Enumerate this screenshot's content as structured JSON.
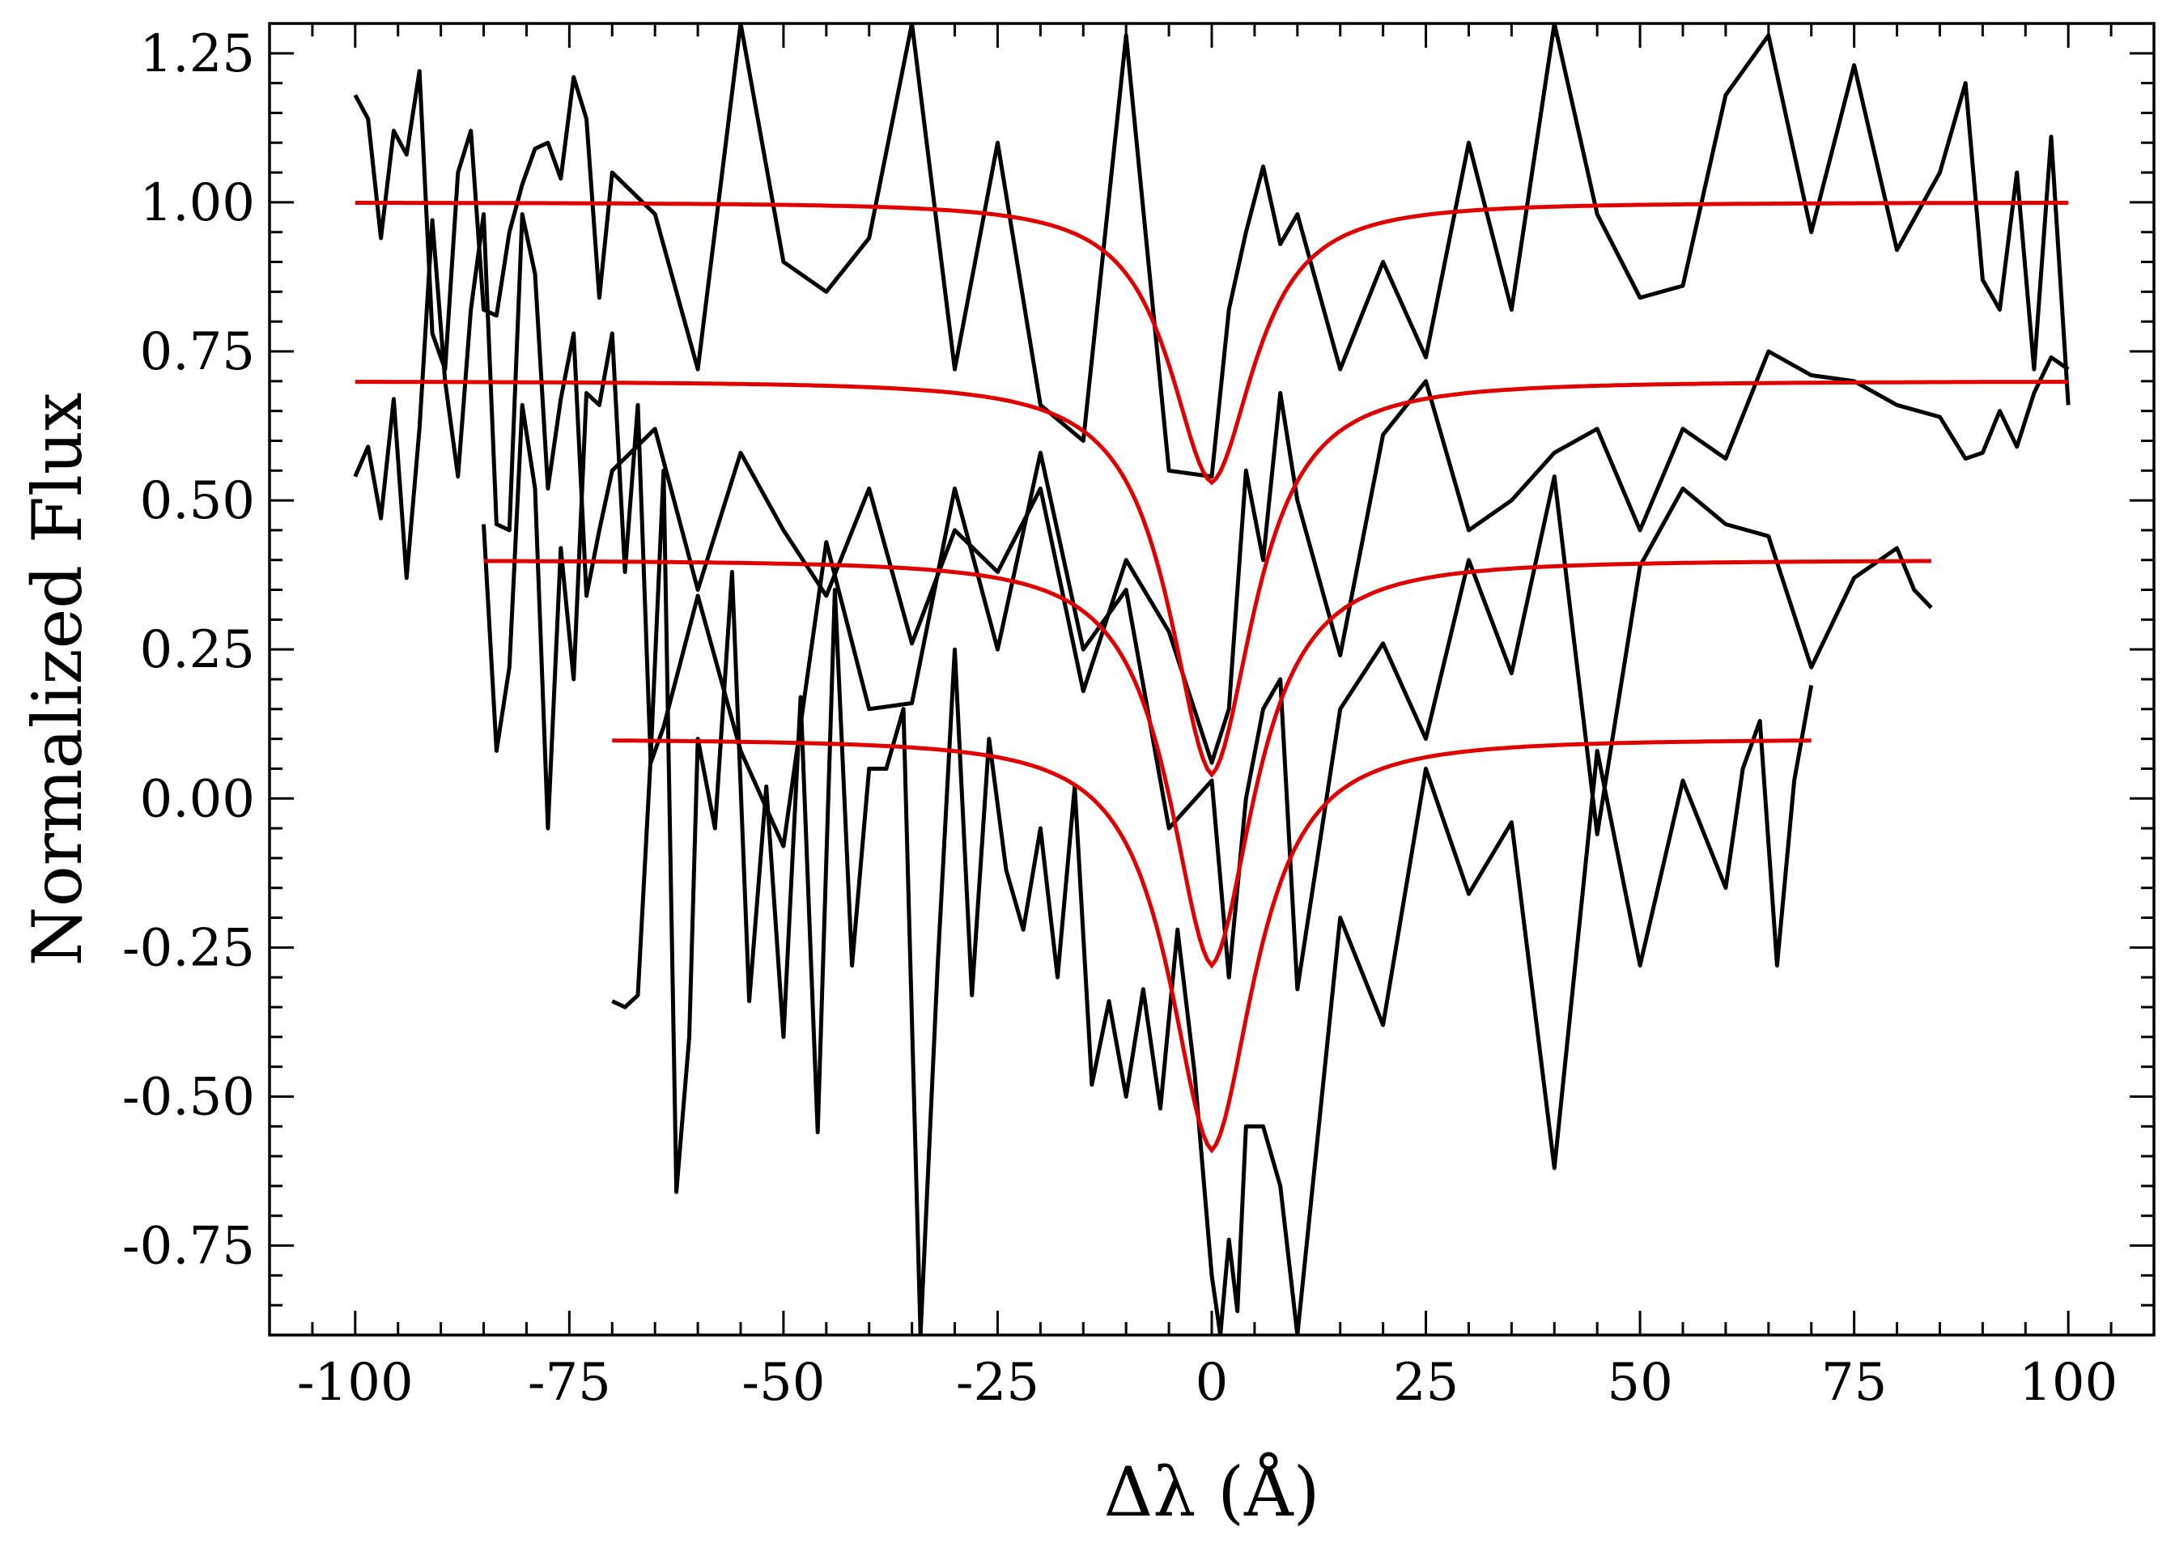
{
  "chart_data": {
    "type": "line",
    "title": "",
    "xlabel": "Δλ (Å)",
    "ylabel": "Normalized Flux",
    "xlim": [
      -110,
      110
    ],
    "ylim": [
      -0.9,
      1.3
    ],
    "xticks": [
      -100,
      -75,
      -50,
      -25,
      0,
      25,
      50,
      75,
      100
    ],
    "xtick_labels": [
      "-100",
      "-75",
      "-50",
      "-25",
      "0",
      "25",
      "50",
      "75",
      "100"
    ],
    "yticks": [
      -0.75,
      -0.5,
      -0.25,
      0.0,
      0.25,
      0.5,
      0.75,
      1.0,
      1.25
    ],
    "ytick_labels": [
      "-0.75",
      "-0.50",
      "-0.25",
      "0.00",
      "0.25",
      "0.50",
      "0.75",
      "1.00",
      "1.25"
    ],
    "grid": false,
    "legend": "none",
    "colors": {
      "data": "#000000",
      "model": "#e00000"
    },
    "series": [
      {
        "offset": 1.0,
        "x_start": -100,
        "x_end": 100,
        "depth": 0.47,
        "x": [
          -100,
          -98.5,
          -97,
          -95.5,
          -94,
          -92.5,
          -91,
          -89.5,
          -88,
          -86.5,
          -85,
          -83.5,
          -82,
          -80.5,
          -79,
          -77.5,
          -76,
          -74.5,
          -73,
          -71.5,
          -70,
          -65,
          -60,
          -55,
          -50,
          -45,
          -40,
          -35,
          -30,
          -25,
          -20,
          -15,
          -10,
          -5,
          0,
          2,
          4,
          6,
          8,
          10,
          15,
          20,
          25,
          30,
          35,
          40,
          45,
          50,
          55,
          60,
          65,
          70,
          75,
          80,
          85,
          88,
          90,
          92,
          94,
          96,
          98,
          100
        ],
        "y": [
          1.18,
          1.14,
          0.94,
          1.12,
          1.08,
          1.22,
          0.78,
          0.72,
          1.05,
          1.12,
          0.82,
          0.81,
          0.95,
          1.03,
          1.09,
          1.1,
          1.04,
          1.21,
          1.14,
          0.84,
          1.05,
          0.98,
          0.72,
          1.3,
          0.9,
          0.85,
          0.94,
          1.3,
          0.72,
          1.1,
          0.66,
          0.6,
          1.28,
          0.55,
          0.54,
          0.82,
          0.95,
          1.06,
          0.93,
          0.98,
          0.72,
          0.9,
          0.74,
          1.1,
          0.82,
          1.3,
          0.98,
          0.84,
          0.86,
          1.18,
          1.28,
          0.95,
          1.23,
          0.92,
          1.05,
          1.2,
          0.87,
          0.82,
          1.05,
          0.72,
          1.11,
          0.66
        ]
      },
      {
        "offset": 0.7,
        "x_start": -100,
        "x_end": 100,
        "depth": 0.66,
        "x": [
          -100,
          -98.5,
          -97,
          -95.5,
          -94,
          -92.5,
          -91,
          -89.5,
          -88,
          -86.5,
          -85,
          -83.5,
          -82,
          -80.5,
          -79,
          -77.5,
          -76,
          -74.5,
          -73,
          -71.5,
          -70,
          -65,
          -60,
          -55,
          -50,
          -45,
          -40,
          -35,
          -30,
          -25,
          -20,
          -15,
          -10,
          -5,
          0,
          2,
          4,
          6,
          8,
          10,
          15,
          20,
          25,
          30,
          35,
          40,
          45,
          50,
          55,
          60,
          65,
          70,
          75,
          80,
          85,
          88,
          90,
          92,
          94,
          96,
          98,
          100
        ],
        "y": [
          0.54,
          0.59,
          0.47,
          0.67,
          0.37,
          0.62,
          0.97,
          0.7,
          0.54,
          0.82,
          0.98,
          0.46,
          0.45,
          0.98,
          0.88,
          0.52,
          0.67,
          0.78,
          0.34,
          0.45,
          0.55,
          0.62,
          0.35,
          0.58,
          0.45,
          0.34,
          0.52,
          0.26,
          0.45,
          0.38,
          0.52,
          0.18,
          0.4,
          0.28,
          0.06,
          0.15,
          0.55,
          0.4,
          0.68,
          0.5,
          0.24,
          0.61,
          0.7,
          0.45,
          0.5,
          0.58,
          0.62,
          0.45,
          0.62,
          0.57,
          0.75,
          0.71,
          0.7,
          0.66,
          0.64,
          0.57,
          0.58,
          0.65,
          0.59,
          0.68,
          0.74,
          0.72
        ]
      },
      {
        "offset": 0.4,
        "x_start": -85,
        "x_end": 84,
        "depth": 0.68,
        "x": [
          -85,
          -83.5,
          -82,
          -80.5,
          -79,
          -77.5,
          -76,
          -74.5,
          -73,
          -71.5,
          -70,
          -68.5,
          -67,
          -65.5,
          -64,
          -60,
          -55,
          -50,
          -45,
          -40,
          -35,
          -30,
          -25,
          -20,
          -15,
          -10,
          -5,
          0,
          2,
          4,
          6,
          8,
          10,
          15,
          20,
          25,
          30,
          35,
          40,
          45,
          50,
          55,
          60,
          65,
          70,
          75,
          80,
          82,
          84
        ],
        "y": [
          0.46,
          0.08,
          0.22,
          0.66,
          0.52,
          -0.05,
          0.42,
          0.2,
          0.68,
          0.66,
          0.78,
          0.38,
          0.66,
          0.06,
          0.12,
          0.34,
          0.08,
          -0.08,
          0.43,
          0.15,
          0.16,
          0.52,
          0.25,
          0.58,
          0.25,
          0.35,
          -0.05,
          0.03,
          -0.3,
          0.0,
          0.15,
          0.2,
          -0.32,
          0.15,
          0.26,
          0.1,
          0.4,
          0.21,
          0.54,
          -0.06,
          0.39,
          0.52,
          0.46,
          0.44,
          0.22,
          0.37,
          0.42,
          0.35,
          0.32
        ]
      },
      {
        "offset": 0.1,
        "x_start": -70,
        "x_end": 70,
        "depth": 0.69,
        "x": [
          -70,
          -68.5,
          -67,
          -65.5,
          -64,
          -62.5,
          -61,
          -60,
          -58,
          -56,
          -54,
          -52,
          -50,
          -48,
          -46,
          -44,
          -42,
          -40,
          -38,
          -36,
          -34,
          -32,
          -30,
          -28,
          -26,
          -24,
          -22,
          -20,
          -18,
          -16,
          -14,
          -12,
          -10,
          -8,
          -6,
          -4,
          -2,
          0,
          1,
          2,
          3,
          4,
          6,
          8,
          10,
          15,
          20,
          25,
          30,
          35,
          40,
          45,
          50,
          55,
          60,
          62,
          64,
          66,
          68,
          70
        ],
        "y": [
          -0.34,
          -0.35,
          -0.33,
          0.07,
          0.55,
          -0.66,
          -0.4,
          0.1,
          -0.05,
          0.38,
          -0.34,
          0.02,
          -0.4,
          0.17,
          -0.56,
          0.35,
          -0.28,
          0.05,
          0.05,
          0.15,
          -0.9,
          -0.28,
          0.25,
          -0.33,
          0.1,
          -0.12,
          -0.22,
          -0.05,
          -0.3,
          0.02,
          -0.48,
          -0.34,
          -0.5,
          -0.32,
          -0.52,
          -0.22,
          -0.46,
          -0.8,
          -0.9,
          -0.74,
          -0.86,
          -0.55,
          -0.55,
          -0.65,
          -0.9,
          -0.2,
          -0.38,
          0.05,
          -0.16,
          -0.04,
          -0.62,
          0.08,
          -0.28,
          0.03,
          -0.15,
          0.05,
          0.13,
          -0.28,
          0.03,
          0.19
        ]
      }
    ]
  }
}
